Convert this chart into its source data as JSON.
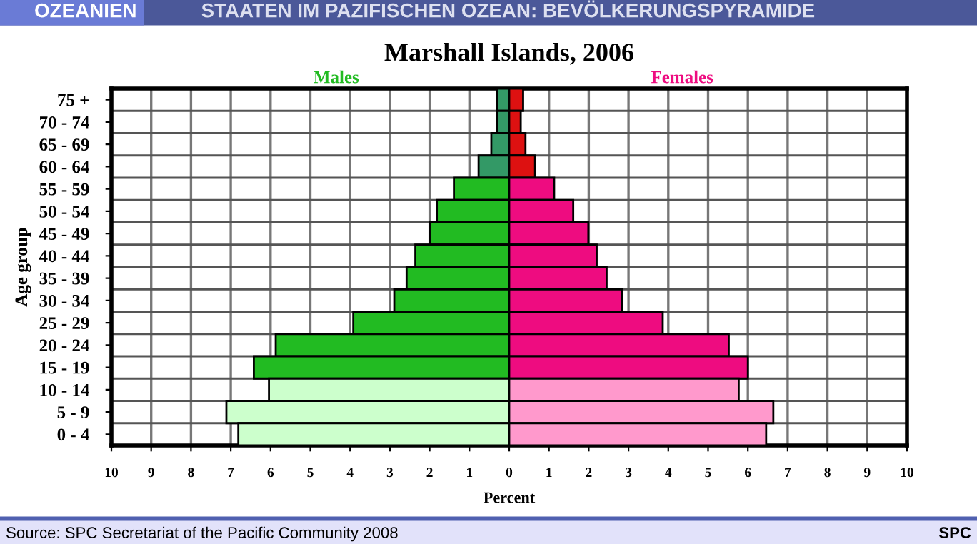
{
  "chart_data": {
    "type": "bar",
    "orientation": "horizontal",
    "stacked": true,
    "title": "Marshall Islands, 2006",
    "xlabel": "Percent",
    "ylabel": "Age group",
    "categories": [
      "75 +",
      "70 - 74",
      "65 - 69",
      "60 - 64",
      "55 - 59",
      "50 - 54",
      "45 - 49",
      "40 - 44",
      "35 - 39",
      "30 - 34",
      "25 - 29",
      "20 - 24",
      "15 - 19",
      "10 - 14",
      "5 - 9",
      "0 - 4"
    ],
    "series": [
      {
        "name": "Males",
        "values": [
          -0.3,
          -0.3,
          -0.45,
          -0.77,
          -1.39,
          -1.82,
          -2.0,
          -2.36,
          -2.58,
          -2.89,
          -3.92,
          -5.87,
          -6.42,
          -6.04,
          -7.11,
          -6.81
        ],
        "colors": [
          "#339966",
          "#339966",
          "#339966",
          "#339966",
          "#22bb22",
          "#22bb22",
          "#22bb22",
          "#22bb22",
          "#22bb22",
          "#22bb22",
          "#22bb22",
          "#22bb22",
          "#22bb22",
          "#ccffcc",
          "#ccffcc",
          "#ccffcc"
        ]
      },
      {
        "name": "Females",
        "values": [
          0.35,
          0.29,
          0.41,
          0.65,
          1.13,
          1.61,
          1.99,
          2.2,
          2.45,
          2.84,
          3.86,
          5.52,
          6.0,
          5.77,
          6.64,
          6.46
        ],
        "colors": [
          "#dd1111",
          "#dd1111",
          "#dd1111",
          "#dd1111",
          "#ee0c80",
          "#ee0c80",
          "#ee0c80",
          "#ee0c80",
          "#ee0c80",
          "#ee0c80",
          "#ee0c80",
          "#ee0c80",
          "#ee0c80",
          "#ff99cc",
          "#ff99cc",
          "#ff99cc"
        ]
      }
    ],
    "xlim": [
      -10,
      10
    ],
    "xticks": [
      {
        "value": -10,
        "label": "10"
      },
      {
        "value": -9,
        "label": "9"
      },
      {
        "value": -8,
        "label": "8"
      },
      {
        "value": -7,
        "label": "7"
      },
      {
        "value": -6,
        "label": "6"
      },
      {
        "value": -5,
        "label": "5"
      },
      {
        "value": -4,
        "label": "4"
      },
      {
        "value": -3,
        "label": "3"
      },
      {
        "value": -2,
        "label": "2"
      },
      {
        "value": -1,
        "label": "1"
      },
      0,
      1,
      2,
      3,
      4,
      5,
      6,
      7,
      8,
      9,
      10
    ],
    "grid": true,
    "legend": false,
    "annotations": [
      "OZEANIEN",
      "STAATEN IM PAZIFISCHEN OZEAN: BEVÖLKERUNGSPYRAMIDE",
      "Source: SPC Secretariat of the Pacific Community 2008",
      "SPC"
    ]
  }
}
